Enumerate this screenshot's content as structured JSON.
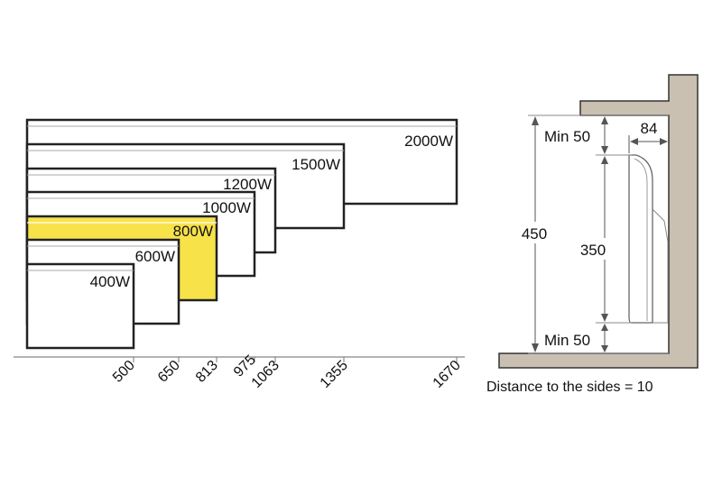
{
  "heater_sizes": {
    "width_labels": [
      "500",
      "650",
      "813",
      "975",
      "1063",
      "1355",
      "1670"
    ],
    "heaters": [
      {
        "wattage": "2000W",
        "width": "1670",
        "highlighted": false
      },
      {
        "wattage": "1500W",
        "width": "1355",
        "highlighted": false
      },
      {
        "wattage": "1200W",
        "width": "1063",
        "highlighted": false
      },
      {
        "wattage": "1000W",
        "width": "975",
        "highlighted": false
      },
      {
        "wattage": "800W",
        "width": "813",
        "highlighted": true
      },
      {
        "wattage": "600W",
        "width": "650",
        "highlighted": false
      },
      {
        "wattage": "400W",
        "width": "500",
        "highlighted": false
      }
    ]
  },
  "installation": {
    "total_height": "450",
    "heater_height": "350",
    "depth": "84",
    "min_top": "Min 50",
    "min_bottom": "Min 50",
    "side_note": "Distance to the sides = 10"
  },
  "colors": {
    "highlight": "#f7e24a",
    "wall": "#c9c0b2",
    "outline": "#222222"
  }
}
